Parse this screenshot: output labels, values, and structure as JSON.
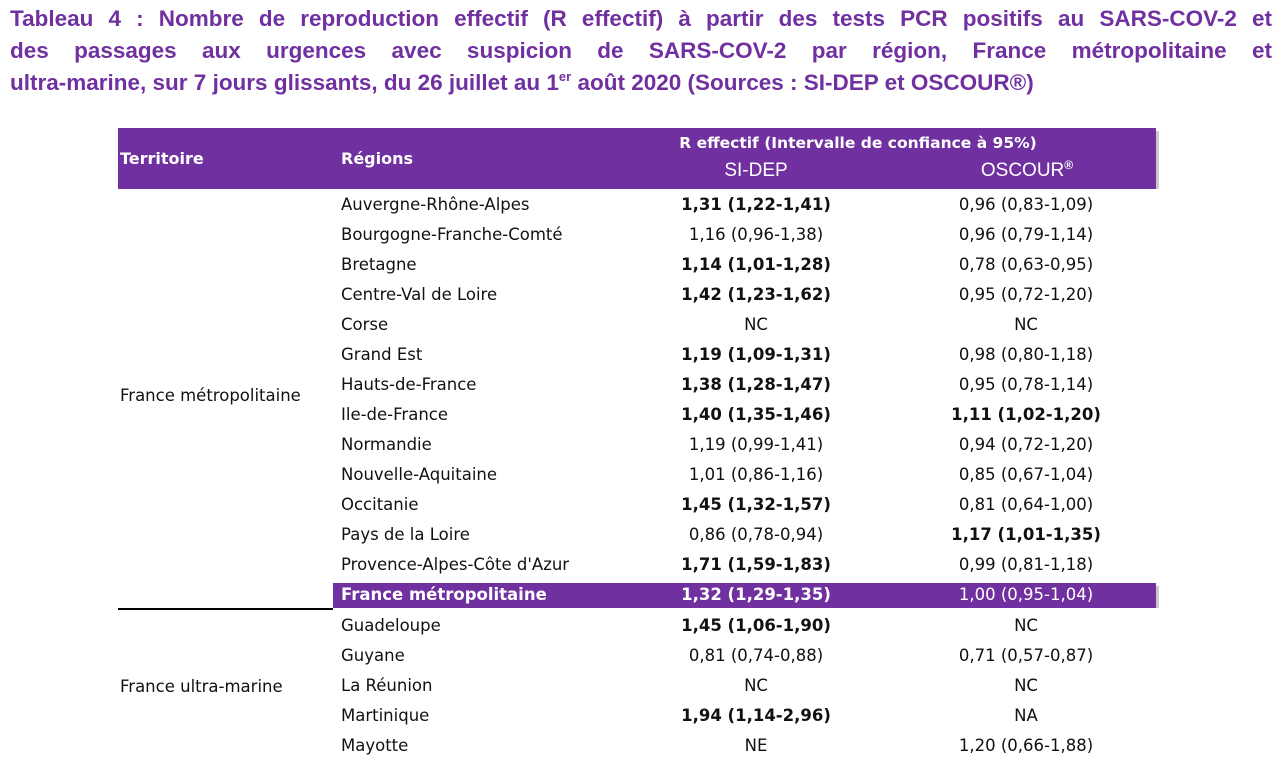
{
  "caption": {
    "line1": "Tableau 4 : Nombre de reproduction effectif (R effectif) à partir des tests PCR positifs au SARS-COV-2  et",
    "line2": "des passages aux urgences avec suspicion de SARS-COV-2 par région, France métropolitaine et",
    "line3_pre": "ultra-marine, sur 7 jours glissants, du 26 juillet au 1",
    "line3_sup": "er",
    "line3_post": " août 2020 (Sources : SI-DEP et OSCOUR®)"
  },
  "header": {
    "territoire": "Territoire",
    "regions": "Régions",
    "r_effectif": "R effectif (Intervalle de confiance à 95%)",
    "sidep": "SI-DEP",
    "oscour": "OSCOUR",
    "oscour_mark": "®"
  },
  "metro": {
    "territoire": "France métropolitaine",
    "rows": [
      {
        "region": "Auvergne-Rhône-Alpes",
        "sidep": "1,31 (1,22-1,41)",
        "sidep_bold": true,
        "oscour": "0,96 (0,83-1,09)",
        "oscour_bold": false
      },
      {
        "region": "Bourgogne-Franche-Comté",
        "sidep": "1,16 (0,96-1,38)",
        "sidep_bold": false,
        "oscour": "0,96 (0,79-1,14)",
        "oscour_bold": false
      },
      {
        "region": "Bretagne",
        "sidep": "1,14 (1,01-1,28)",
        "sidep_bold": true,
        "oscour": "0,78 (0,63-0,95)",
        "oscour_bold": false
      },
      {
        "region": "Centre-Val de Loire",
        "sidep": "1,42 (1,23-1,62)",
        "sidep_bold": true,
        "oscour": "0,95 (0,72-1,20)",
        "oscour_bold": false
      },
      {
        "region": "Corse",
        "sidep": "NC",
        "sidep_bold": false,
        "oscour": "NC",
        "oscour_bold": false
      },
      {
        "region": "Grand Est",
        "sidep": "1,19 (1,09-1,31)",
        "sidep_bold": true,
        "oscour": "0,98 (0,80-1,18)",
        "oscour_bold": false
      },
      {
        "region": "Hauts-de-France",
        "sidep": "1,38 (1,28-1,47)",
        "sidep_bold": true,
        "oscour": "0,95 (0,78-1,14)",
        "oscour_bold": false
      },
      {
        "region": "Ile-de-France",
        "sidep": "1,40 (1,35-1,46)",
        "sidep_bold": true,
        "oscour": "1,11 (1,02-1,20)",
        "oscour_bold": true
      },
      {
        "region": "Normandie",
        "sidep": "1,19 (0,99-1,41)",
        "sidep_bold": false,
        "oscour": "0,94 (0,72-1,20)",
        "oscour_bold": false
      },
      {
        "region": "Nouvelle-Aquitaine",
        "sidep": "1,01 (0,86-1,16)",
        "sidep_bold": false,
        "oscour": "0,85 (0,67-1,04)",
        "oscour_bold": false
      },
      {
        "region": "Occitanie",
        "sidep": "1,45 (1,32-1,57)",
        "sidep_bold": true,
        "oscour": "0,81 (0,64-1,00)",
        "oscour_bold": false
      },
      {
        "region": "Pays de la Loire",
        "sidep": "0,86 (0,78-0,94)",
        "sidep_bold": false,
        "oscour": "1,17 (1,01-1,35)",
        "oscour_bold": true
      },
      {
        "region": "Provence-Alpes-Côte d'Azur",
        "sidep": "1,71 (1,59-1,83)",
        "sidep_bold": true,
        "oscour": "0,99 (0,81-1,18)",
        "oscour_bold": false
      }
    ],
    "total": {
      "region": "France métropolitaine",
      "sidep": "1,32 (1,29-1,35)",
      "oscour": "1,00 (0,95-1,04)"
    }
  },
  "outremer": {
    "territoire": "France ultra-marine",
    "rows": [
      {
        "region": "Guadeloupe",
        "sidep": "1,45 (1,06-1,90)",
        "sidep_bold": true,
        "oscour": "NC",
        "oscour_bold": false
      },
      {
        "region": "Guyane",
        "sidep": "0,81 (0,74-0,88)",
        "sidep_bold": false,
        "oscour": "0,71 (0,57-0,87)",
        "oscour_bold": false
      },
      {
        "region": "La Réunion",
        "sidep": "NC",
        "sidep_bold": false,
        "oscour": "NC",
        "oscour_bold": false
      },
      {
        "region": "Martinique",
        "sidep": "1,94 (1,14-2,96)",
        "sidep_bold": true,
        "oscour": "NA",
        "oscour_bold": false
      },
      {
        "region": "Mayotte",
        "sidep": "NE",
        "sidep_bold": false,
        "oscour": "1,20 (0,66-1,88)",
        "oscour_bold": false
      }
    ]
  }
}
